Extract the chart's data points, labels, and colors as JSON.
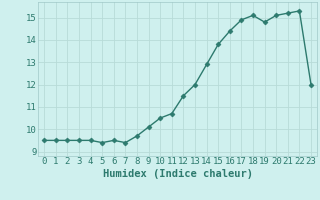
{
  "x": [
    0,
    1,
    2,
    3,
    4,
    5,
    6,
    7,
    8,
    9,
    10,
    11,
    12,
    13,
    14,
    15,
    16,
    17,
    18,
    19,
    20,
    21,
    22,
    23
  ],
  "y": [
    9.5,
    9.5,
    9.5,
    9.5,
    9.5,
    9.4,
    9.5,
    9.4,
    9.7,
    10.1,
    10.5,
    10.7,
    11.5,
    12.0,
    12.9,
    13.8,
    14.4,
    14.9,
    15.1,
    14.8,
    15.1,
    15.2,
    15.3,
    12.0
  ],
  "xlabel": "Humidex (Indice chaleur)",
  "ylim": [
    8.8,
    15.7
  ],
  "yticks": [
    9,
    10,
    11,
    12,
    13,
    14,
    15
  ],
  "xtick_labels": [
    "0",
    "1",
    "2",
    "3",
    "4",
    "5",
    "6",
    "7",
    "8",
    "9",
    "10",
    "11",
    "12",
    "13",
    "14",
    "15",
    "16",
    "17",
    "18",
    "19",
    "20",
    "21",
    "22",
    "23"
  ],
  "line_color": "#2d7a6e",
  "bg_color": "#cff0ee",
  "grid_color": "#b8dbd8",
  "marker": "D",
  "marker_size": 2.5,
  "line_width": 1.0,
  "xlabel_fontsize": 7.5,
  "tick_fontsize": 6.5
}
